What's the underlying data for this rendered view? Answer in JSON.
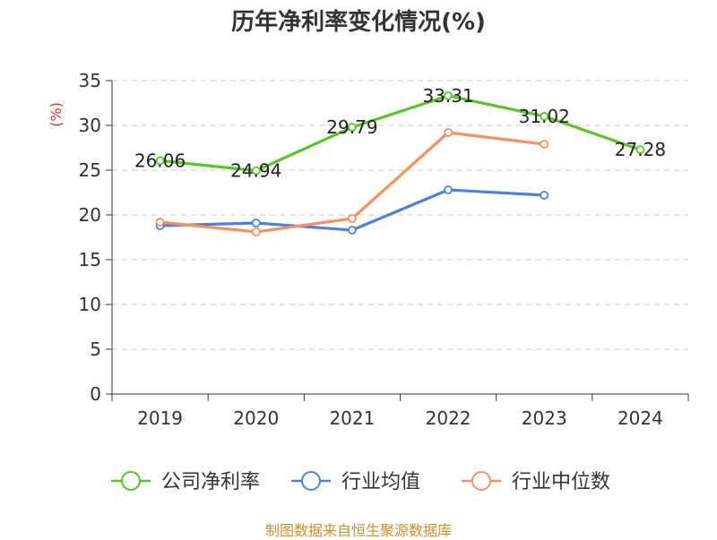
{
  "title": "历年净利率变化情况(%)",
  "source": "制图数据来自恒生聚源数据库",
  "chart_data": {
    "type": "line",
    "title": "历年净利率变化情况(%)",
    "xlabel": "",
    "ylabel": "(%)",
    "ylim": [
      0,
      35
    ],
    "yticks": [
      "0",
      "5",
      "10",
      "15",
      "20",
      "25",
      "30",
      "35"
    ],
    "categories": [
      "2019",
      "2020",
      "2021",
      "2022",
      "2023",
      "2024"
    ],
    "grid": true,
    "legend_position": "bottom",
    "series": [
      {
        "name": "公司净利率",
        "color": "#5bc42a",
        "values": [
          26.06,
          24.94,
          29.79,
          33.31,
          31.02,
          27.28
        ],
        "labels": [
          "26.06",
          "24.94",
          "29.79",
          "33.31",
          "31.02",
          "27.28"
        ]
      },
      {
        "name": "行业均值",
        "color": "#4f81d6",
        "values": [
          18.8,
          19.1,
          18.3,
          22.8,
          22.2,
          null
        ]
      },
      {
        "name": "行业中位数",
        "color": "#f59263",
        "values": [
          19.2,
          18.1,
          19.6,
          29.2,
          27.9,
          null
        ]
      }
    ]
  }
}
